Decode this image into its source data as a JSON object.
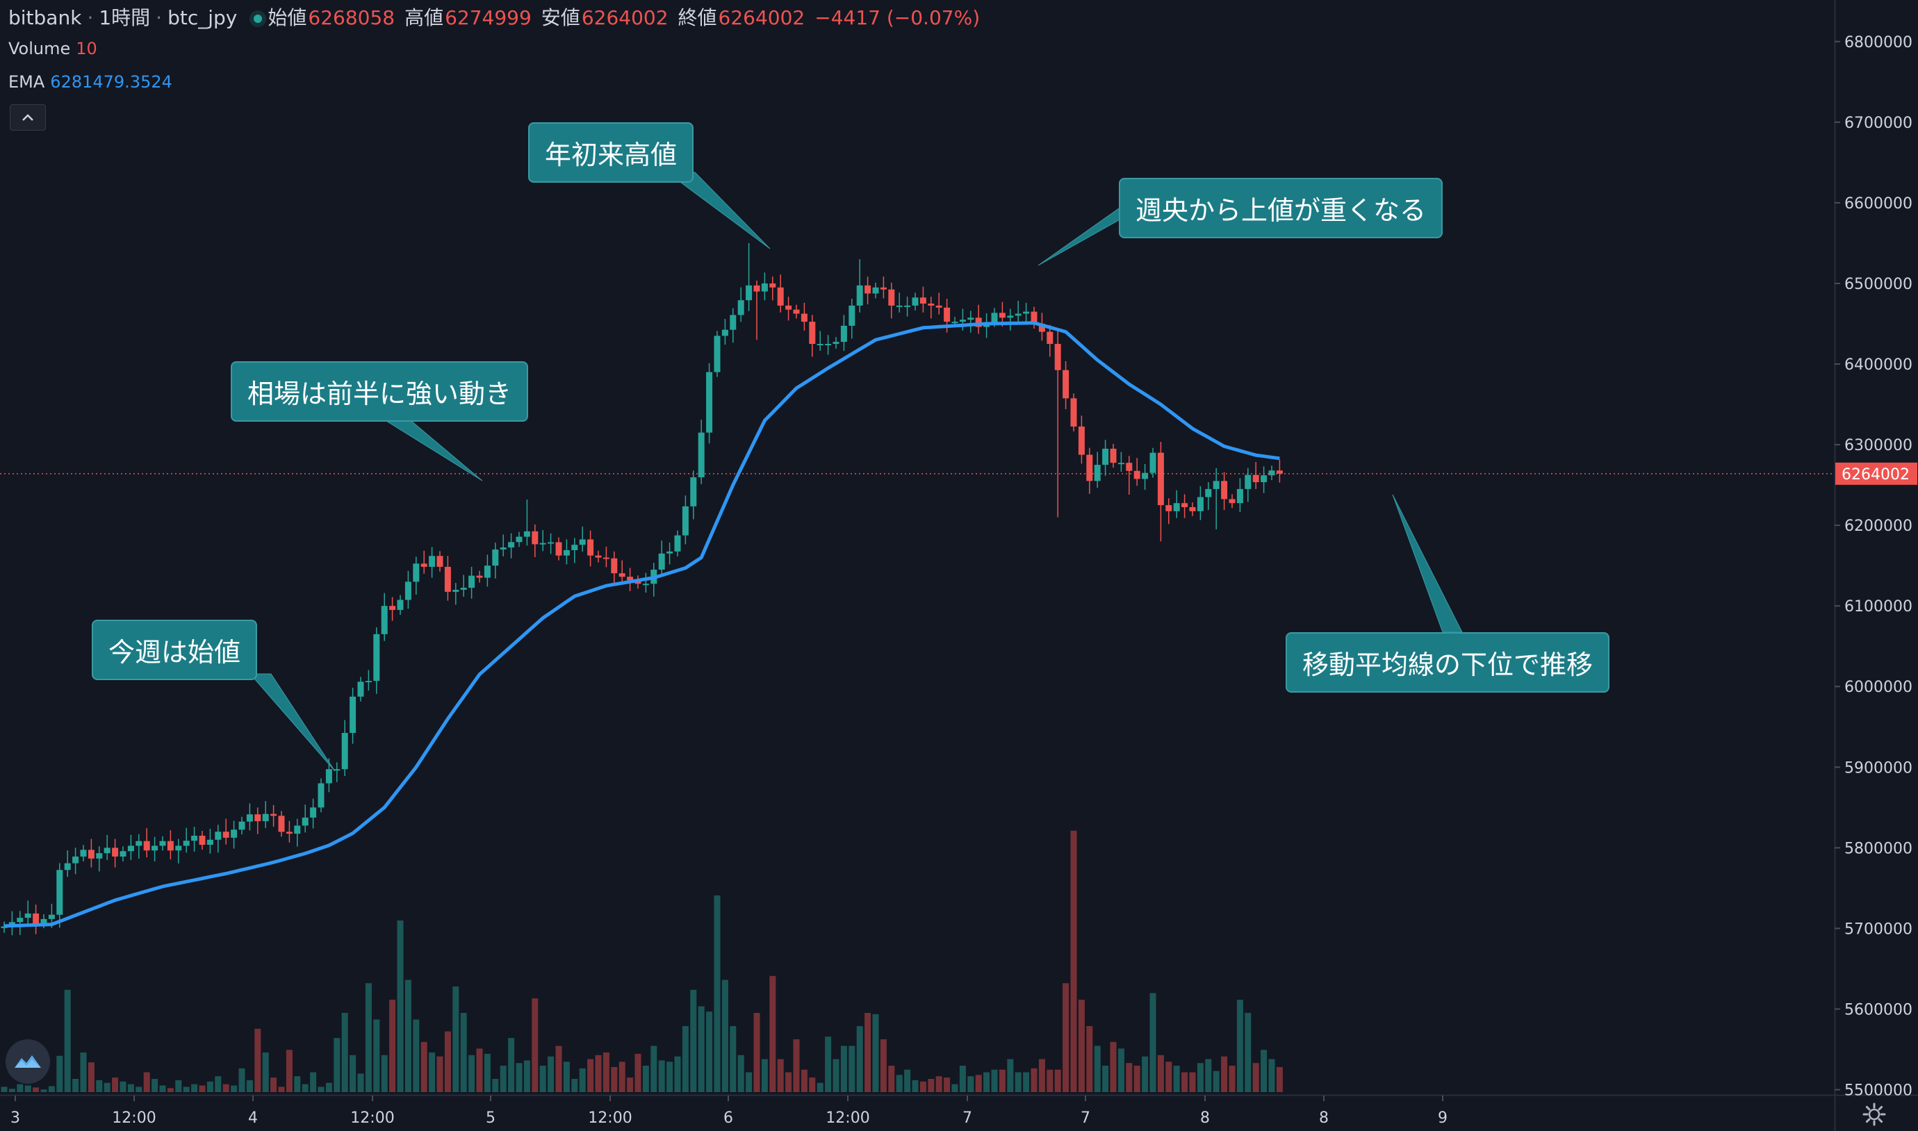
{
  "header": {
    "exchange": "bitbank",
    "interval": "1時間",
    "symbol": "btc_jpy",
    "ohlc": [
      {
        "label": "始値",
        "value": "6268058"
      },
      {
        "label": "高値",
        "value": "6274999"
      },
      {
        "label": "安値",
        "value": "6264002"
      },
      {
        "label": "終値",
        "value": "6264002"
      }
    ],
    "change": "−4417 (−0.07%)"
  },
  "volume_legend": {
    "label": "Volume",
    "value": "10"
  },
  "ema_legend": {
    "label": "EMA",
    "value": "6281479.3524"
  },
  "price_tag": "6264002",
  "callouts": {
    "weekly_open": "今週は始値",
    "first_half": "相場は前半に強い動き",
    "ytd_high": "年初来高値",
    "midweek": "週央から上値が重くなる",
    "below_ma": "移動平均線の下位で推移"
  },
  "icons": {
    "collapse": "chevron-up-icon",
    "logo": "bitbank-logo-icon",
    "settings": "gear-icon"
  },
  "colors": {
    "background": "#131722",
    "up": "#26a69a",
    "down": "#ef5350",
    "ema": "#2f96f3",
    "callout": "#1c7c86"
  },
  "chart_data": {
    "type": "candlestick",
    "interval": "1h",
    "y_ticks": [
      "6800000",
      "6700000",
      "6600000",
      "6500000",
      "6400000",
      "6300000",
      "6200000",
      "6100000",
      "6000000",
      "5900000",
      "5800000",
      "5700000",
      "5600000",
      "5500000"
    ],
    "x_ticks": [
      "3",
      "12:00",
      "4",
      "12:00",
      "5",
      "12:00",
      "6",
      "12:00",
      "7",
      "7",
      "8",
      "8",
      "9"
    ],
    "ylim": [
      5497000,
      6805000
    ],
    "ema_label": "EMA",
    "ema_knots": [
      [
        0,
        5703000
      ],
      [
        6,
        5705000
      ],
      [
        10,
        5720000
      ],
      [
        14,
        5735000
      ],
      [
        20,
        5752000
      ],
      [
        28,
        5768000
      ],
      [
        34,
        5782000
      ],
      [
        38,
        5793000
      ],
      [
        41,
        5803000
      ],
      [
        44,
        5818000
      ],
      [
        48,
        5850000
      ],
      [
        52,
        5900000
      ],
      [
        56,
        5960000
      ],
      [
        60,
        6015000
      ],
      [
        64,
        6050000
      ],
      [
        68,
        6085000
      ],
      [
        72,
        6112000
      ],
      [
        76,
        6125000
      ],
      [
        82,
        6135000
      ],
      [
        86,
        6147000
      ],
      [
        88,
        6160000
      ],
      [
        92,
        6250000
      ],
      [
        96,
        6330000
      ],
      [
        100,
        6370000
      ],
      [
        104,
        6395000
      ],
      [
        110,
        6430000
      ],
      [
        116,
        6445000
      ],
      [
        124,
        6450000
      ],
      [
        130,
        6451000
      ],
      [
        134,
        6440000
      ],
      [
        138,
        6405000
      ],
      [
        142,
        6375000
      ],
      [
        146,
        6350000
      ],
      [
        150,
        6320000
      ],
      [
        154,
        6298000
      ],
      [
        158,
        6287000
      ],
      [
        161,
        6283000
      ]
    ],
    "price_knots": [
      [
        0,
        5710000
      ],
      [
        6,
        5712000
      ],
      [
        7,
        5780000
      ],
      [
        10,
        5790000
      ],
      [
        16,
        5800000
      ],
      [
        22,
        5805000
      ],
      [
        26,
        5810000
      ],
      [
        30,
        5830000
      ],
      [
        33,
        5842000
      ],
      [
        36,
        5820000
      ],
      [
        38,
        5830000
      ],
      [
        40,
        5880000
      ],
      [
        42,
        5905000
      ],
      [
        44,
        5985000
      ],
      [
        46,
        6012000
      ],
      [
        47,
        6065000
      ],
      [
        48,
        6095000
      ],
      [
        50,
        6110000
      ],
      [
        52,
        6145000
      ],
      [
        54,
        6162000
      ],
      [
        56,
        6125000
      ],
      [
        58,
        6120000
      ],
      [
        61,
        6150000
      ],
      [
        63,
        6180000
      ],
      [
        66,
        6185000
      ],
      [
        68,
        6178000
      ],
      [
        70,
        6170000
      ],
      [
        73,
        6175000
      ],
      [
        75,
        6160000
      ],
      [
        77,
        6148000
      ],
      [
        80,
        6120000
      ],
      [
        82,
        6145000
      ],
      [
        85,
        6190000
      ],
      [
        87,
        6252000
      ],
      [
        88,
        6320000
      ],
      [
        89,
        6390000
      ],
      [
        90,
        6430000
      ],
      [
        91,
        6450000
      ],
      [
        94,
        6490000
      ],
      [
        96,
        6500000
      ],
      [
        98,
        6480000
      ],
      [
        100,
        6460000
      ],
      [
        102,
        6430000
      ],
      [
        104,
        6420000
      ],
      [
        106,
        6450000
      ],
      [
        108,
        6490000
      ],
      [
        110,
        6495000
      ],
      [
        112,
        6480000
      ],
      [
        114,
        6470000
      ],
      [
        116,
        6480000
      ],
      [
        118,
        6465000
      ],
      [
        120,
        6455000
      ],
      [
        122,
        6450000
      ],
      [
        124,
        6452000
      ],
      [
        126,
        6465000
      ],
      [
        128,
        6460000
      ],
      [
        130,
        6455000
      ],
      [
        131,
        6440000
      ],
      [
        133,
        6400000
      ],
      [
        135,
        6320000
      ],
      [
        136,
        6280000
      ],
      [
        137,
        6260000
      ],
      [
        139,
        6290000
      ],
      [
        141,
        6280000
      ],
      [
        143,
        6250000
      ],
      [
        145,
        6290000
      ],
      [
        146,
        6220000
      ],
      [
        148,
        6230000
      ],
      [
        150,
        6210000
      ],
      [
        151,
        6240000
      ],
      [
        153,
        6250000
      ],
      [
        155,
        6230000
      ],
      [
        157,
        6255000
      ],
      [
        159,
        6262000
      ],
      [
        161,
        6264002
      ]
    ],
    "spikes": [
      [
        94,
        6550000
      ],
      [
        95,
        6430000
      ],
      [
        108,
        6530000
      ],
      [
        133,
        6210000
      ],
      [
        146,
        6180000
      ],
      [
        66,
        6232000
      ],
      [
        142,
        6238000
      ],
      [
        153,
        6195000
      ]
    ],
    "volume_scale": [
      0,
      400
    ],
    "volume_pattern": [
      8,
      5,
      12,
      10,
      7,
      4,
      9,
      55,
      155,
      20,
      60,
      45,
      18,
      14,
      22,
      16,
      12,
      8,
      30,
      20,
      10,
      6,
      18,
      8,
      12,
      10,
      16,
      24,
      12,
      10,
      36,
      18,
      96,
      60,
      22,
      8,
      64,
      24,
      12,
      30,
      8,
      14,
      82,
      120,
      56,
      28,
      165,
      110,
      56,
      140,
      260,
      170,
      110,
      76,
      60,
      54,
      92,
      160,
      120,
      56,
      66,
      58,
      20,
      40,
      82,
      44,
      48,
      142,
      40,
      54,
      70,
      46,
      20,
      36,
      50,
      56,
      60,
      38,
      46,
      22,
      58,
      40,
      70,
      48,
      46,
      54,
      100,
      155,
      130,
      122,
      298,
      170,
      100,
      56,
      30,
      120,
      50,
      176,
      50,
      30,
      80,
      34,
      22,
      14,
      84,
      50,
      70,
      70,
      100,
      120,
      118,
      80,
      40,
      26,
      34,
      18,
      16,
      20,
      24,
      22,
      12,
      40,
      24,
      26,
      30,
      34,
      34,
      50,
      30,
      30,
      36,
      50,
      34,
      34,
      165,
      396,
      140,
      100,
      70,
      40,
      76,
      66,
      44,
      40,
      54,
      150,
      56,
      46,
      40,
      30,
      30,
      44,
      50,
      32,
      54,
      40,
      140,
      120,
      44,
      64,
      50,
      38
    ]
  }
}
